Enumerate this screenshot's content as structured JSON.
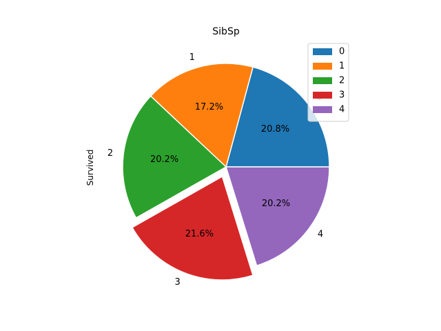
{
  "chart_data": {
    "type": "pie",
    "title": "SibSp",
    "ylabel": "Survived",
    "categories": [
      "0",
      "1",
      "2",
      "3",
      "4"
    ],
    "values": [
      20.8,
      17.2,
      20.2,
      21.6,
      20.2
    ],
    "pct_labels": [
      "20.8%",
      "17.2%",
      "20.2%",
      "21.6%",
      "20.2%"
    ],
    "explode": [
      0,
      0,
      0,
      0.1,
      0
    ],
    "start_angle_deg": 0,
    "direction": "counterclockwise",
    "colors": [
      "#1f77b4",
      "#ff7f0e",
      "#2ca02c",
      "#d62728",
      "#9467bd"
    ],
    "legend": {
      "placement": "upper-right",
      "entries": [
        "0",
        "1",
        "2",
        "3",
        "4"
      ]
    }
  }
}
